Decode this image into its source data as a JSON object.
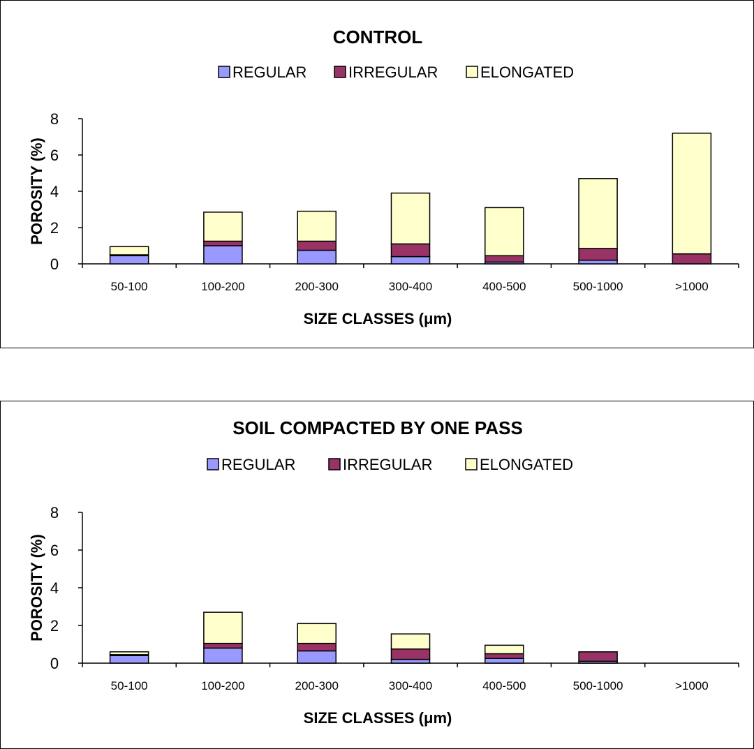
{
  "chart_data": [
    {
      "type": "bar",
      "stacked": true,
      "title": "CONTROL",
      "xlabel": "SIZE CLASSES (μm)",
      "ylabel": "POROSITY (%)",
      "ylim": [
        0,
        8
      ],
      "yticks": [
        0,
        2,
        4,
        6,
        8
      ],
      "legend_position": "top",
      "grid": false,
      "categories": [
        "50-100",
        "100-200",
        "200-300",
        "300-400",
        "400-500",
        "500-1000",
        ">1000"
      ],
      "series": [
        {
          "name": "REGULAR",
          "color": "#9999ff",
          "values": [
            0.45,
            1.0,
            0.75,
            0.4,
            0.1,
            0.2,
            0.0
          ]
        },
        {
          "name": "IRREGULAR",
          "color": "#993366",
          "values": [
            0.05,
            0.25,
            0.5,
            0.7,
            0.35,
            0.65,
            0.55
          ]
        },
        {
          "name": "ELONGATED",
          "color": "#ffffcc",
          "values": [
            0.45,
            1.6,
            1.65,
            2.8,
            2.65,
            3.85,
            6.65
          ]
        }
      ]
    },
    {
      "type": "bar",
      "stacked": true,
      "title": "SOIL COMPACTED BY ONE PASS",
      "xlabel": "SIZE CLASSES (μm)",
      "ylabel": "POROSITY (%)",
      "ylim": [
        0,
        8
      ],
      "yticks": [
        0,
        2,
        4,
        6,
        8
      ],
      "legend_position": "top",
      "grid": false,
      "categories": [
        "50-100",
        "100-200",
        "200-300",
        "300-400",
        "400-500",
        "500-1000",
        ">1000"
      ],
      "series": [
        {
          "name": "REGULAR",
          "color": "#9999ff",
          "values": [
            0.4,
            0.8,
            0.65,
            0.2,
            0.25,
            0.1,
            0.0
          ]
        },
        {
          "name": "IRREGULAR",
          "color": "#993366",
          "values": [
            0.05,
            0.25,
            0.4,
            0.55,
            0.25,
            0.5,
            0.0
          ]
        },
        {
          "name": "ELONGATED",
          "color": "#ffffcc",
          "values": [
            0.15,
            1.65,
            1.05,
            0.8,
            0.45,
            0.0,
            0.0
          ]
        }
      ]
    }
  ]
}
